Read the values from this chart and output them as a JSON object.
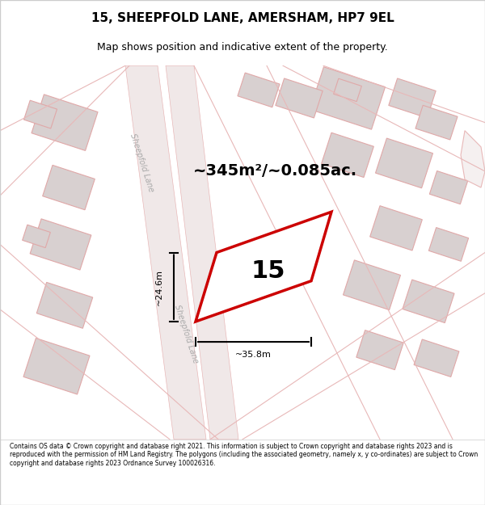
{
  "title": "15, SHEEPFOLD LANE, AMERSHAM, HP7 9EL",
  "subtitle": "Map shows position and indicative extent of the property.",
  "area_label": "~345m²/~0.085ac.",
  "house_number": "15",
  "dim_width": "~35.8m",
  "dim_height": "~24.6m",
  "footer": "Contains OS data © Crown copyright and database right 2021. This information is subject to Crown copyright and database rights 2023 and is reproduced with the permission of HM Land Registry. The polygons (including the associated geometry, namely x, y co-ordinates) are subject to Crown copyright and database rights 2023 Ordnance Survey 100026316.",
  "bg_color": "#f5f0f0",
  "map_bg": "#ffffff",
  "road_color": "#e8b8b8",
  "building_color": "#d8d0d0",
  "plot_color": "#ffffff",
  "plot_border": "#cc0000",
  "text_color": "#000000",
  "footer_bg": "#ffffff",
  "title_bg": "#ffffff"
}
